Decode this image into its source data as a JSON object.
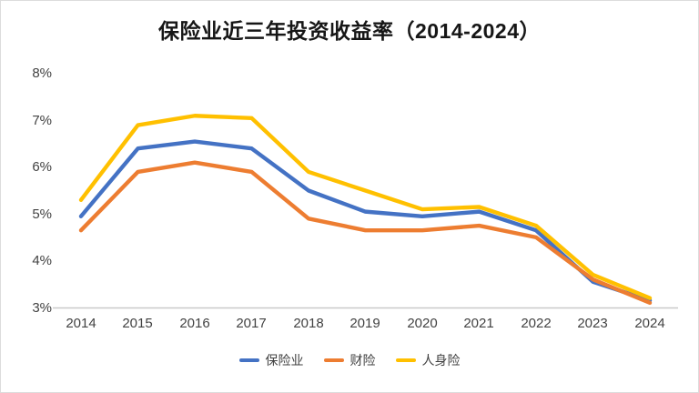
{
  "chart_data": {
    "type": "line",
    "title": "保险业近三年投资收益率（2014-2024）",
    "categories": [
      "2014",
      "2015",
      "2016",
      "2017",
      "2018",
      "2019",
      "2020",
      "2021",
      "2022",
      "2023",
      "2024"
    ],
    "series": [
      {
        "name": "保险业",
        "color": "#4472C4",
        "values": [
          4.95,
          6.4,
          6.55,
          6.4,
          5.5,
          5.05,
          4.95,
          5.05,
          4.65,
          3.55,
          3.15
        ]
      },
      {
        "name": "财险",
        "color": "#ED7D31",
        "values": [
          4.65,
          5.9,
          6.1,
          5.9,
          4.9,
          4.65,
          4.65,
          4.75,
          4.5,
          3.6,
          3.1
        ]
      },
      {
        "name": "人身险",
        "color": "#FFC000",
        "values": [
          5.3,
          6.9,
          7.1,
          7.05,
          5.9,
          5.5,
          5.1,
          5.15,
          4.75,
          3.7,
          3.2
        ]
      }
    ],
    "ylim": [
      3,
      8
    ],
    "ytick_labels": [
      "8%",
      "7%",
      "6%",
      "5%",
      "4%",
      "3%"
    ],
    "xlabel": "",
    "ylabel": "",
    "grid": false,
    "legend_position": "bottom",
    "axis_color": "#c9c9c9",
    "background": "#ffffff"
  }
}
